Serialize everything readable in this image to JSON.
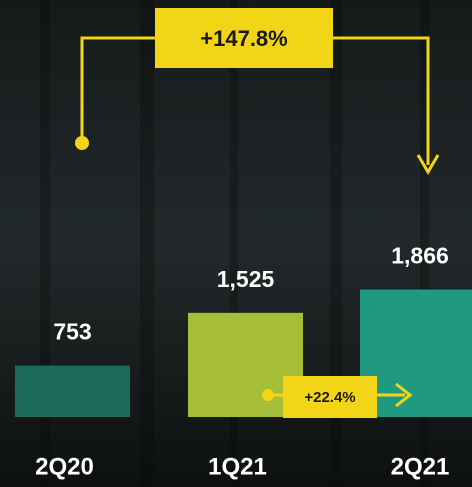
{
  "chart_data": {
    "type": "bar",
    "categories": [
      "2Q20",
      "1Q21",
      "2Q21"
    ],
    "values": [
      753,
      1525,
      1866
    ],
    "value_labels": [
      "753",
      "1,525",
      "1,866"
    ],
    "colors": [
      "#1b6a5a",
      "#a6bd38",
      "#1f9a80"
    ],
    "annotations": [
      {
        "text": "+147.8%",
        "from": 0,
        "to": 2
      },
      {
        "text": "+22.4%",
        "from": 1,
        "to": 2
      }
    ],
    "annotation_color": "#f2d516"
  }
}
